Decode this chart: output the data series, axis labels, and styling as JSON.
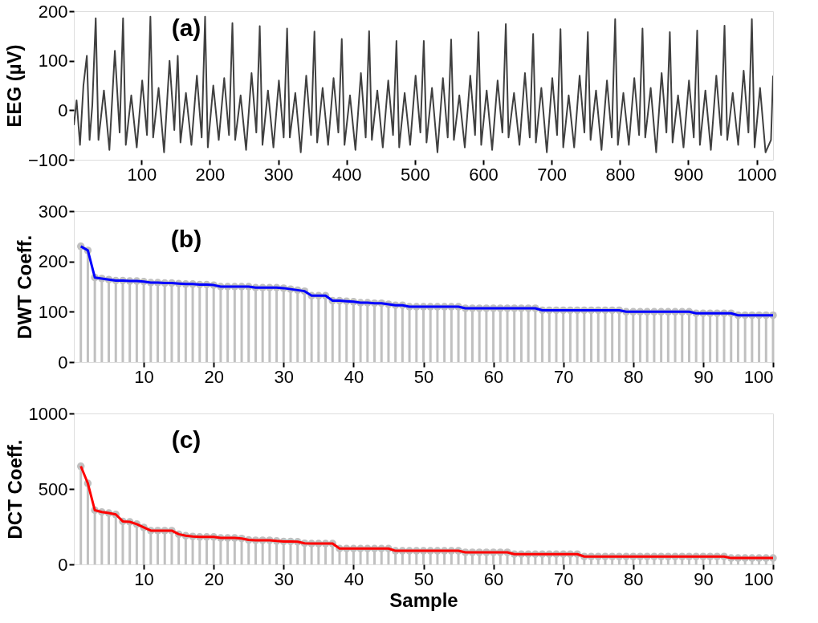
{
  "chart_data": [
    {
      "type": "line",
      "ylabel": "EEG (µV)",
      "annotations": [
        "(a)"
      ],
      "xlim": [
        1,
        1024
      ],
      "xticks": [
        100,
        200,
        300,
        400,
        500,
        600,
        700,
        800,
        900,
        1000
      ],
      "ylim": [
        -100,
        200
      ],
      "yticks": [
        -100,
        0,
        100,
        200
      ],
      "grid": false,
      "x": [
        1,
        5,
        10,
        15,
        20,
        24,
        28,
        33,
        37,
        45,
        53,
        61,
        68,
        73,
        77,
        85,
        93,
        101,
        108,
        113,
        117,
        125,
        133,
        141,
        148,
        153,
        157,
        165,
        173,
        181,
        188,
        193,
        197,
        205,
        213,
        221,
        228,
        233,
        237,
        245,
        253,
        261,
        268,
        273,
        277,
        285,
        293,
        301,
        308,
        313,
        317,
        325,
        333,
        341,
        348,
        353,
        357,
        365,
        373,
        381,
        388,
        393,
        397,
        405,
        413,
        421,
        428,
        433,
        437,
        445,
        453,
        461,
        468,
        473,
        477,
        485,
        493,
        501,
        508,
        513,
        517,
        525,
        533,
        541,
        548,
        553,
        557,
        565,
        573,
        581,
        588,
        593,
        597,
        605,
        613,
        621,
        628,
        633,
        637,
        645,
        653,
        661,
        668,
        673,
        677,
        685,
        693,
        701,
        708,
        713,
        717,
        725,
        733,
        741,
        748,
        753,
        757,
        765,
        773,
        781,
        788,
        793,
        797,
        805,
        813,
        821,
        828,
        833,
        837,
        845,
        853,
        861,
        868,
        873,
        877,
        885,
        893,
        901,
        908,
        913,
        917,
        925,
        933,
        941,
        948,
        953,
        957,
        965,
        973,
        981,
        988,
        993,
        997,
        1005,
        1013,
        1021,
        1024
      ],
      "series": [
        {
          "color": "#404040",
          "values": [
            -30,
            20,
            -70,
            50,
            110,
            -60,
            10,
            186,
            -60,
            40,
            -80,
            120,
            -45,
            186,
            -70,
            30,
            -75,
            60,
            -50,
            189,
            -55,
            45,
            -85,
            100,
            -40,
            110,
            -65,
            35,
            -70,
            70,
            -55,
            189,
            -75,
            50,
            -60,
            65,
            -50,
            176,
            -60,
            30,
            -80,
            75,
            -45,
            170,
            -70,
            40,
            -75,
            60,
            -55,
            165,
            -55,
            35,
            -85,
            70,
            -50,
            159,
            -65,
            45,
            -70,
            65,
            -45,
            144,
            -70,
            30,
            -80,
            75,
            -55,
            160,
            -60,
            40,
            -75,
            60,
            -50,
            140,
            -75,
            35,
            -70,
            70,
            -45,
            140,
            -65,
            45,
            -85,
            65,
            -55,
            143,
            -60,
            30,
            -75,
            70,
            -50,
            158,
            -70,
            40,
            -80,
            60,
            -45,
            174,
            -55,
            35,
            -70,
            75,
            -55,
            154,
            -65,
            45,
            -85,
            65,
            -50,
            164,
            -75,
            30,
            -75,
            70,
            -45,
            158,
            -60,
            40,
            -80,
            60,
            -55,
            184,
            -70,
            35,
            -70,
            65,
            -50,
            165,
            -55,
            45,
            -85,
            75,
            -45,
            158,
            -65,
            30,
            -75,
            60,
            -55,
            161,
            -70,
            40,
            -80,
            70,
            -50,
            171,
            -60,
            35,
            -70,
            80,
            -45,
            184,
            -75,
            45,
            -85,
            -60,
            70
          ]
        }
      ]
    },
    {
      "type": "lollipop",
      "ylabel": "DWT Coeff.",
      "annotations": [
        "(b)"
      ],
      "xlim": [
        0,
        100
      ],
      "xticks": [
        10,
        20,
        30,
        40,
        50,
        60,
        70,
        80,
        90,
        100
      ],
      "ylim": [
        0,
        300
      ],
      "yticks": [
        0,
        100,
        200,
        300
      ],
      "grid": false,
      "x": [
        1,
        2,
        3,
        4,
        5,
        6,
        7,
        8,
        9,
        10,
        11,
        12,
        13,
        14,
        15,
        16,
        17,
        18,
        19,
        20,
        21,
        22,
        23,
        24,
        25,
        26,
        27,
        28,
        29,
        30,
        31,
        32,
        33,
        34,
        35,
        36,
        37,
        38,
        39,
        40,
        41,
        42,
        43,
        44,
        45,
        46,
        47,
        48,
        49,
        50,
        51,
        52,
        53,
        54,
        55,
        56,
        57,
        58,
        59,
        60,
        61,
        62,
        63,
        64,
        65,
        66,
        67,
        68,
        69,
        70,
        71,
        72,
        73,
        74,
        75,
        76,
        77,
        78,
        79,
        80,
        81,
        82,
        83,
        84,
        85,
        86,
        87,
        88,
        89,
        90,
        91,
        92,
        93,
        94,
        95,
        96,
        97,
        98,
        99,
        100
      ],
      "series": [
        {
          "type": "lollipop",
          "marker": "circle",
          "color": "#c0c0c0",
          "values": [
            230,
            222,
            168,
            166,
            164,
            162,
            162,
            161,
            161,
            160,
            158,
            158,
            157,
            157,
            156,
            155,
            155,
            154,
            154,
            153,
            150,
            150,
            150,
            150,
            150,
            148,
            148,
            148,
            148,
            147,
            145,
            143,
            141,
            132,
            132,
            132,
            122,
            122,
            121,
            120,
            118,
            118,
            117,
            117,
            115,
            113,
            113,
            110,
            110,
            110,
            110,
            110,
            110,
            110,
            110,
            107,
            107,
            107,
            107,
            107,
            107,
            107,
            107,
            107,
            107,
            107,
            103,
            103,
            103,
            103,
            103,
            103,
            103,
            103,
            103,
            103,
            103,
            103,
            100,
            100,
            100,
            100,
            100,
            100,
            100,
            100,
            100,
            100,
            97,
            97,
            97,
            97,
            97,
            97,
            93,
            93,
            93,
            93,
            93,
            93
          ]
        },
        {
          "type": "line",
          "color": "#0000ff",
          "values": [
            230,
            222,
            168,
            166,
            164,
            162,
            162,
            161,
            161,
            160,
            158,
            158,
            157,
            157,
            156,
            155,
            155,
            154,
            154,
            153,
            150,
            150,
            150,
            150,
            150,
            148,
            148,
            148,
            148,
            147,
            145,
            143,
            141,
            132,
            132,
            132,
            122,
            122,
            121,
            120,
            118,
            118,
            117,
            117,
            115,
            113,
            113,
            110,
            110,
            110,
            110,
            110,
            110,
            110,
            110,
            107,
            107,
            107,
            107,
            107,
            107,
            107,
            107,
            107,
            107,
            107,
            103,
            103,
            103,
            103,
            103,
            103,
            103,
            103,
            103,
            103,
            103,
            103,
            100,
            100,
            100,
            100,
            100,
            100,
            100,
            100,
            100,
            100,
            97,
            97,
            97,
            97,
            97,
            97,
            93,
            93,
            93,
            93,
            93,
            93
          ]
        }
      ]
    },
    {
      "type": "lollipop",
      "ylabel": "DCT Coeff.",
      "xlabel": "Sample",
      "annotations": [
        "(c)"
      ],
      "xlim": [
        0,
        100
      ],
      "xticks": [
        10,
        20,
        30,
        40,
        50,
        60,
        70,
        80,
        90,
        100
      ],
      "ylim": [
        0,
        1000
      ],
      "yticks": [
        0,
        500,
        1000
      ],
      "grid": false,
      "x": [
        1,
        2,
        3,
        4,
        5,
        6,
        7,
        8,
        9,
        10,
        11,
        12,
        13,
        14,
        15,
        16,
        17,
        18,
        19,
        20,
        21,
        22,
        23,
        24,
        25,
        26,
        27,
        28,
        29,
        30,
        31,
        32,
        33,
        34,
        35,
        36,
        37,
        38,
        39,
        40,
        41,
        42,
        43,
        44,
        45,
        46,
        47,
        48,
        49,
        50,
        51,
        52,
        53,
        54,
        55,
        56,
        57,
        58,
        59,
        60,
        61,
        62,
        63,
        64,
        65,
        66,
        67,
        68,
        69,
        70,
        71,
        72,
        73,
        74,
        75,
        76,
        77,
        78,
        79,
        80,
        81,
        82,
        83,
        84,
        85,
        86,
        87,
        88,
        89,
        90,
        91,
        92,
        93,
        94,
        95,
        96,
        97,
        98,
        99,
        100
      ],
      "series": [
        {
          "type": "lollipop",
          "marker": "circle",
          "color": "#c0c0c0",
          "values": [
            650,
            537,
            359,
            347,
            340,
            331,
            285,
            282,
            267,
            245,
            224,
            224,
            224,
            224,
            200,
            190,
            185,
            182,
            182,
            182,
            175,
            175,
            175,
            172,
            162,
            160,
            160,
            160,
            155,
            152,
            152,
            150,
            140,
            138,
            138,
            138,
            138,
            105,
            105,
            105,
            105,
            105,
            105,
            105,
            105,
            90,
            90,
            90,
            90,
            90,
            90,
            90,
            90,
            90,
            90,
            80,
            80,
            80,
            80,
            80,
            80,
            80,
            68,
            68,
            68,
            68,
            68,
            68,
            68,
            68,
            68,
            68,
            52,
            52,
            52,
            52,
            52,
            52,
            52,
            52,
            52,
            52,
            52,
            52,
            52,
            52,
            52,
            52,
            52,
            52,
            52,
            52,
            52,
            42,
            42,
            42,
            42,
            42,
            42,
            42
          ]
        },
        {
          "type": "line",
          "color": "#ff0000",
          "values": [
            650,
            537,
            359,
            347,
            340,
            331,
            285,
            282,
            267,
            245,
            224,
            224,
            224,
            224,
            200,
            190,
            185,
            182,
            182,
            182,
            175,
            175,
            175,
            172,
            162,
            160,
            160,
            160,
            155,
            152,
            152,
            150,
            140,
            138,
            138,
            138,
            138,
            105,
            105,
            105,
            105,
            105,
            105,
            105,
            105,
            90,
            90,
            90,
            90,
            90,
            90,
            90,
            90,
            90,
            90,
            80,
            80,
            80,
            80,
            80,
            80,
            80,
            68,
            68,
            68,
            68,
            68,
            68,
            68,
            68,
            68,
            68,
            52,
            52,
            52,
            52,
            52,
            52,
            52,
            52,
            52,
            52,
            52,
            52,
            52,
            52,
            52,
            52,
            52,
            52,
            52,
            52,
            52,
            42,
            42,
            42,
            42,
            42,
            42,
            42
          ]
        }
      ]
    }
  ]
}
